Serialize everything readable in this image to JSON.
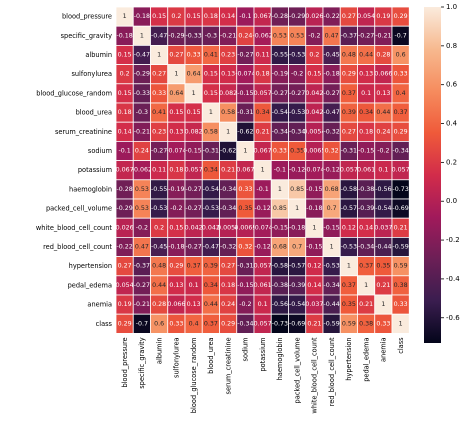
{
  "chart_data": {
    "type": "heatmap",
    "title": "",
    "labels": [
      "blood_pressure",
      "specific_gravity",
      "albumin",
      "sulfonylurea",
      "blood_glucose_random",
      "blood_urea",
      "serum_creatinine",
      "sodium",
      "potassium",
      "haemoglobin",
      "packed_cell_volume",
      "white_blood_cell_count",
      "red_blood_cell_count",
      "hypertension",
      "pedal_edema",
      "anemia",
      "class"
    ],
    "values": [
      [
        "1",
        "-0.18",
        "0.15",
        "0.2",
        "0.15",
        "0.18",
        "0.14",
        "-0.1",
        "0.067",
        "-0.28",
        "-0.29",
        "0.026",
        "-0.22",
        "0.27",
        "0.054",
        "0.19",
        "0.29"
      ],
      [
        "-0.18",
        "1",
        "-0.47",
        "-0.29",
        "-0.33",
        "-0.3",
        "-0.21",
        "0.24",
        "-0.062",
        "0.53",
        "0.53",
        "-0.2",
        "0.47",
        "-0.37",
        "-0.27",
        "-0.21",
        "-0.7"
      ],
      [
        "0.15",
        "-0.47",
        "1",
        "0.27",
        "0.33",
        "0.41",
        "0.23",
        "-0.27",
        "0.11",
        "-0.55",
        "-0.53",
        "0.2",
        "-0.45",
        "0.48",
        "0.44",
        "0.28",
        "0.6"
      ],
      [
        "0.2",
        "-0.29",
        "0.27",
        "1",
        "0.64",
        "0.15",
        "0.13",
        "-0.074",
        "0.18",
        "-0.19",
        "-0.2",
        "0.15",
        "-0.18",
        "0.29",
        "0.13",
        "0.066",
        "0.33"
      ],
      [
        "0.15",
        "-0.33",
        "0.33",
        "0.64",
        "1",
        "0.15",
        "0.082",
        "-0.15",
        "0.057",
        "-0.27",
        "-0.27",
        "0.042",
        "-0.27",
        "0.37",
        "0.1",
        "0.13",
        "0.4"
      ],
      [
        "0.18",
        "-0.3",
        "0.41",
        "0.15",
        "0.15",
        "1",
        "0.58",
        "-0.31",
        "0.34",
        "-0.54",
        "-0.53",
        "0.042",
        "-0.47",
        "0.39",
        "0.34",
        "0.44",
        "0.37"
      ],
      [
        "0.14",
        "-0.21",
        "0.23",
        "0.13",
        "0.082",
        "0.58",
        "1",
        "-0.62",
        "0.21",
        "-0.34",
        "-0.34",
        "0.0054",
        "-0.32",
        "0.27",
        "0.18",
        "0.24",
        "0.29"
      ],
      [
        "-0.1",
        "0.24",
        "-0.27",
        "-0.074",
        "-0.15",
        "-0.31",
        "-0.62",
        "1",
        "0.067",
        "0.33",
        "0.35",
        "0.0065",
        "0.32",
        "-0.31",
        "-0.15",
        "-0.2",
        "-0.34"
      ],
      [
        "0.067",
        "-0.062",
        "0.11",
        "0.18",
        "0.057",
        "0.34",
        "0.21",
        "0.067",
        "1",
        "-0.1",
        "-0.12",
        "-0.074",
        "-0.12",
        "0.057",
        "0.061",
        "0.1",
        "0.057"
      ],
      [
        "-0.28",
        "0.53",
        "-0.55",
        "-0.19",
        "-0.27",
        "-0.54",
        "-0.34",
        "0.33",
        "-0.1",
        "1",
        "0.85",
        "-0.15",
        "0.68",
        "-0.58",
        "-0.38",
        "-0.56",
        "-0.73"
      ],
      [
        "-0.29",
        "0.53",
        "-0.53",
        "-0.2",
        "-0.27",
        "-0.53",
        "-0.34",
        "0.35",
        "-0.12",
        "0.85",
        "1",
        "-0.18",
        "0.7",
        "-0.57",
        "-0.39",
        "-0.54",
        "-0.69"
      ],
      [
        "0.026",
        "-0.2",
        "0.2",
        "0.15",
        "0.042",
        "0.042",
        "0.0054",
        "0.0065",
        "-0.074",
        "-0.15",
        "-0.18",
        "1",
        "-0.15",
        "0.12",
        "0.14",
        "0.037",
        "0.21"
      ],
      [
        "-0.22",
        "0.47",
        "-0.45",
        "-0.18",
        "-0.27",
        "-0.47",
        "-0.32",
        "0.32",
        "-0.12",
        "0.68",
        "0.7",
        "-0.15",
        "1",
        "-0.53",
        "-0.34",
        "-0.44",
        "-0.59"
      ],
      [
        "0.27",
        "-0.37",
        "0.48",
        "0.29",
        "0.37",
        "0.39",
        "0.27",
        "-0.31",
        "0.057",
        "-0.58",
        "-0.57",
        "0.12",
        "-0.53",
        "1",
        "0.37",
        "0.35",
        "0.59"
      ],
      [
        "0.054",
        "-0.27",
        "0.44",
        "0.13",
        "0.1",
        "0.34",
        "0.18",
        "-0.15",
        "0.061",
        "-0.38",
        "-0.39",
        "0.14",
        "-0.34",
        "0.37",
        "1",
        "0.21",
        "0.38"
      ],
      [
        "0.19",
        "-0.21",
        "0.28",
        "0.066",
        "0.13",
        "0.44",
        "0.24",
        "-0.2",
        "0.1",
        "-0.56",
        "-0.54",
        "0.037",
        "-0.44",
        "0.35",
        "0.21",
        "1",
        "0.33"
      ],
      [
        "0.29",
        "-0.7",
        "0.6",
        "0.33",
        "0.4",
        "0.37",
        "0.29",
        "-0.34",
        "0.057",
        "-0.73",
        "-0.69",
        "0.21",
        "-0.59",
        "0.59",
        "0.38",
        "0.33",
        "1"
      ]
    ],
    "colorbar": {
      "vmin": -0.73,
      "vmax": 1.0,
      "ticks": [
        "1.0",
        "0.8",
        "0.6",
        "0.4",
        "0.2",
        "0.0",
        "-0.2",
        "-0.4",
        "-0.6"
      ]
    },
    "colormap": [
      "#03051a",
      "#3a1d4f",
      "#6c1f56",
      "#a11a5b",
      "#d22c4a",
      "#ef5a3a",
      "#f68c5e",
      "#f7b98f",
      "#faebdd"
    ],
    "gridline_color": "#ffffff",
    "light_text_color": "#ffffff",
    "dark_text_color": "#262626"
  }
}
